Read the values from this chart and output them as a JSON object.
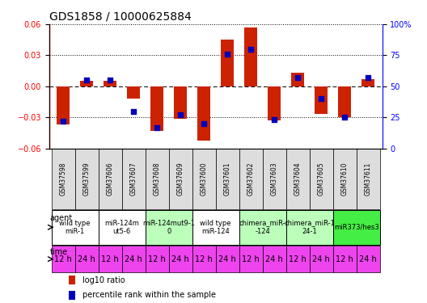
{
  "title": "GDS1858 / 10000625884",
  "samples": [
    "GSM37598",
    "GSM37599",
    "GSM37606",
    "GSM37607",
    "GSM37608",
    "GSM37609",
    "GSM37600",
    "GSM37601",
    "GSM37602",
    "GSM37603",
    "GSM37604",
    "GSM37605",
    "GSM37610",
    "GSM37611"
  ],
  "log10_ratio": [
    -0.037,
    0.005,
    0.005,
    -0.012,
    -0.043,
    -0.031,
    -0.052,
    0.045,
    0.057,
    -0.033,
    0.013,
    -0.027,
    -0.03,
    0.007
  ],
  "percentile_rank": [
    22,
    55,
    55,
    30,
    17,
    27,
    20,
    76,
    80,
    23,
    57,
    40,
    25,
    57
  ],
  "agent_groups": [
    {
      "label": "wild type\nmiR-1",
      "cols": [
        0,
        1
      ],
      "color": "#ffffff"
    },
    {
      "label": "miR-124m\nut5-6",
      "cols": [
        2,
        3
      ],
      "color": "#ffffff"
    },
    {
      "label": "miR-124mut9-1\n0",
      "cols": [
        4,
        5
      ],
      "color": "#bbffbb"
    },
    {
      "label": "wild type\nmiR-124",
      "cols": [
        6,
        7
      ],
      "color": "#ffffff"
    },
    {
      "label": "chimera_miR-\n-124",
      "cols": [
        8,
        9
      ],
      "color": "#bbffbb"
    },
    {
      "label": "chimera_miR-1\n24-1",
      "cols": [
        10,
        11
      ],
      "color": "#bbffbb"
    },
    {
      "label": "miR373/hes3",
      "cols": [
        12,
        13
      ],
      "color": "#44ee44"
    }
  ],
  "time_labels": [
    "12 h",
    "24 h",
    "12 h",
    "24 h",
    "12 h",
    "24 h",
    "12 h",
    "24 h",
    "12 h",
    "24 h",
    "12 h",
    "24 h",
    "12 h",
    "24 h"
  ],
  "time_color": "#ee44ee",
  "sample_bg": "#dddddd",
  "ylim": [
    -0.06,
    0.06
  ],
  "y2lim": [
    0,
    100
  ],
  "yticks_left": [
    -0.06,
    -0.03,
    0,
    0.03,
    0.06
  ],
  "yticks_right": [
    0,
    25,
    50,
    75,
    100
  ],
  "bar_color": "#cc2200",
  "dot_color": "#0000bb",
  "bar_width": 0.55,
  "dot_size": 18,
  "title_fontsize": 10,
  "tick_fontsize": 7,
  "sample_fontsize": 5.5,
  "agent_fontsize": 6,
  "time_fontsize": 7,
  "legend_fontsize": 7
}
